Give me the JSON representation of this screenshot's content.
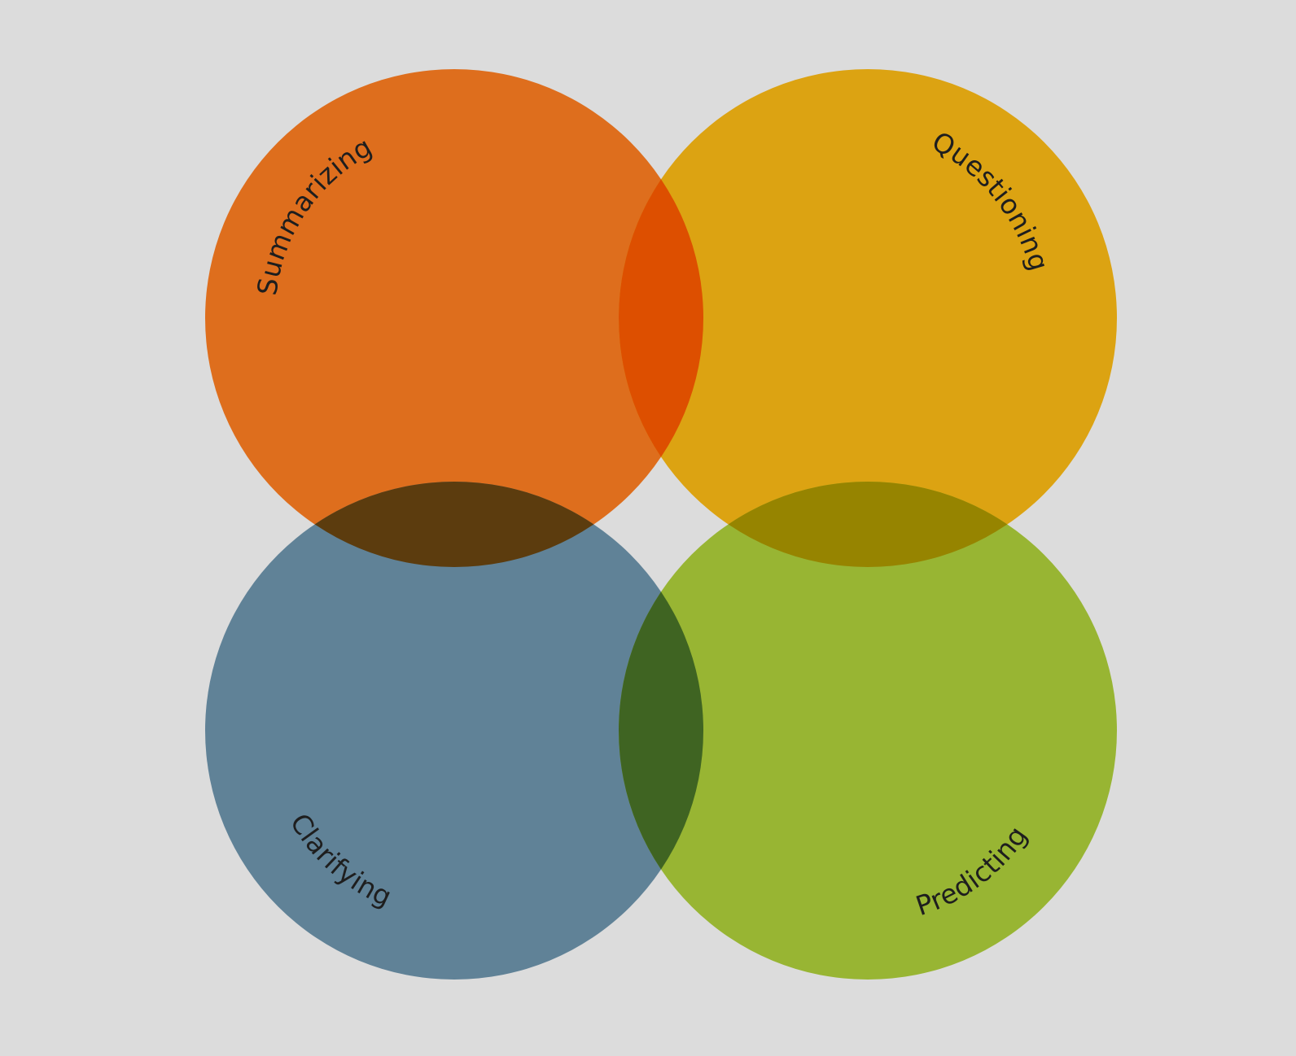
{
  "diagram": {
    "background_color": "#dcdcdc",
    "circles": [
      {
        "id": "summarizing",
        "label": "Summarizing",
        "color": "#dd6b18",
        "opacity": 0.98
      },
      {
        "id": "questioning",
        "label": "Questioning",
        "color": "#dba10d",
        "opacity": 0.98
      },
      {
        "id": "clarifying",
        "label": "Clarifying",
        "color": "#5d7f95",
        "opacity": 0.98
      },
      {
        "id": "predicting",
        "label": "Predicting",
        "color": "#96b42f",
        "opacity": 0.98
      }
    ],
    "overlap_colors": {
      "summarizing_questioning": "#dd4f00",
      "summarizing_clarifying": "#5c3c0e",
      "questioning_predicting": "#968400",
      "clarifying_predicting": "#3f6422"
    }
  }
}
